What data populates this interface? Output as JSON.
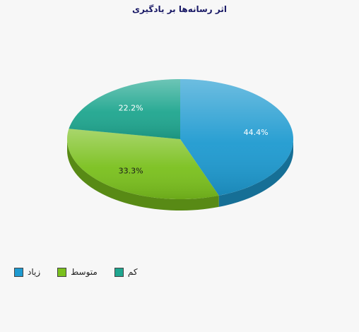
{
  "chart_data": {
    "type": "pie",
    "title": "اثر رسانه‌ها بر یادگیری",
    "slices": [
      {
        "name": "زیاد",
        "value": 44.4,
        "label": "44.4%",
        "color": "#1e9ad0"
      },
      {
        "name": "متوسط",
        "value": 33.3,
        "label": "33.3%",
        "color": "#7ac01d"
      },
      {
        "name": "کم",
        "value": 22.2,
        "label": "22.2%",
        "color": "#1fa68f"
      }
    ],
    "legend_position": "bottom-left"
  }
}
